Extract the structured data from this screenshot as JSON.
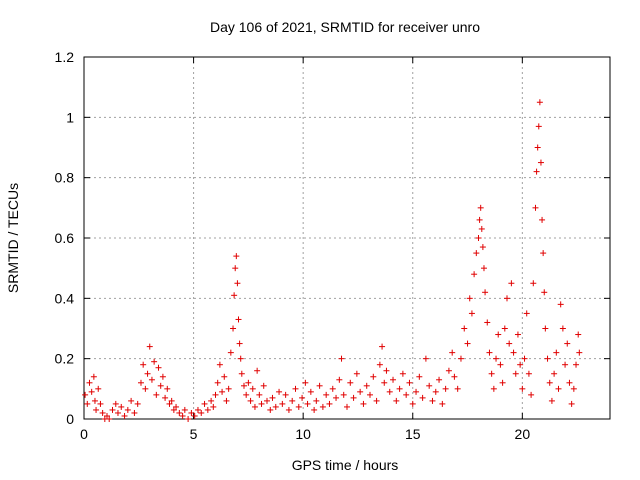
{
  "chart_data": {
    "type": "scatter",
    "title": "Day 106 of 2021, SRMTID for receiver unro",
    "xlabel": "GPS time / hours",
    "ylabel": "SRMTID / TECUs",
    "xlim": [
      0,
      24
    ],
    "ylim": [
      0,
      1.2
    ],
    "xticks": [
      0,
      5,
      10,
      15,
      20
    ],
    "xtick_labels": [
      "0",
      "5",
      "10",
      "15",
      "20"
    ],
    "yticks": [
      0,
      0.2,
      0.4,
      0.6,
      0.8,
      1.0,
      1.2
    ],
    "ytick_labels": [
      "0",
      "0.2",
      "0.4",
      "0.6",
      "0.8",
      "1",
      "1.2"
    ],
    "grid": true,
    "marker": "+",
    "color": "#e00000",
    "series": [
      {
        "name": "SRMTID",
        "points": [
          [
            0.05,
            0.08
          ],
          [
            0.15,
            0.05
          ],
          [
            0.25,
            0.12
          ],
          [
            0.35,
            0.09
          ],
          [
            0.45,
            0.14
          ],
          [
            0.5,
            0.06
          ],
          [
            0.55,
            0.03
          ],
          [
            0.65,
            0.1
          ],
          [
            0.75,
            0.05
          ],
          [
            0.85,
            0.02
          ],
          [
            0.95,
            0.0
          ],
          [
            1.05,
            0.01
          ],
          [
            1.15,
            0.0
          ],
          [
            1.3,
            0.03
          ],
          [
            1.45,
            0.05
          ],
          [
            1.55,
            0.02
          ],
          [
            1.7,
            0.04
          ],
          [
            1.85,
            0.01
          ],
          [
            2.0,
            0.03
          ],
          [
            2.15,
            0.06
          ],
          [
            2.3,
            0.02
          ],
          [
            2.45,
            0.05
          ],
          [
            2.6,
            0.12
          ],
          [
            2.7,
            0.18
          ],
          [
            2.8,
            0.1
          ],
          [
            2.9,
            0.15
          ],
          [
            3.0,
            0.24
          ],
          [
            3.1,
            0.13
          ],
          [
            3.2,
            0.19
          ],
          [
            3.3,
            0.08
          ],
          [
            3.4,
            0.17
          ],
          [
            3.5,
            0.11
          ],
          [
            3.6,
            0.14
          ],
          [
            3.7,
            0.07
          ],
          [
            3.8,
            0.1
          ],
          [
            3.9,
            0.05
          ],
          [
            4.0,
            0.06
          ],
          [
            4.1,
            0.03
          ],
          [
            4.2,
            0.04
          ],
          [
            4.35,
            0.02
          ],
          [
            4.5,
            0.01
          ],
          [
            4.6,
            0.03
          ],
          [
            4.75,
            0.0
          ],
          [
            4.9,
            0.02
          ],
          [
            5.05,
            0.01
          ],
          [
            5.2,
            0.03
          ],
          [
            5.35,
            0.02
          ],
          [
            5.5,
            0.05
          ],
          [
            5.65,
            0.03
          ],
          [
            5.8,
            0.06
          ],
          [
            5.9,
            0.04
          ],
          [
            6.0,
            0.08
          ],
          [
            6.1,
            0.12
          ],
          [
            6.2,
            0.18
          ],
          [
            6.3,
            0.09
          ],
          [
            6.4,
            0.14
          ],
          [
            6.5,
            0.06
          ],
          [
            6.6,
            0.1
          ],
          [
            6.7,
            0.22
          ],
          [
            6.8,
            0.3
          ],
          [
            6.85,
            0.41
          ],
          [
            6.9,
            0.5
          ],
          [
            6.95,
            0.54
          ],
          [
            7.0,
            0.45
          ],
          [
            7.05,
            0.33
          ],
          [
            7.1,
            0.25
          ],
          [
            7.15,
            0.2
          ],
          [
            7.2,
            0.15
          ],
          [
            7.3,
            0.11
          ],
          [
            7.4,
            0.08
          ],
          [
            7.5,
            0.12
          ],
          [
            7.6,
            0.06
          ],
          [
            7.7,
            0.1
          ],
          [
            7.8,
            0.04
          ],
          [
            7.9,
            0.16
          ],
          [
            8.0,
            0.08
          ],
          [
            8.1,
            0.05
          ],
          [
            8.2,
            0.11
          ],
          [
            8.35,
            0.06
          ],
          [
            8.5,
            0.03
          ],
          [
            8.6,
            0.07
          ],
          [
            8.75,
            0.04
          ],
          [
            8.9,
            0.09
          ],
          [
            9.05,
            0.05
          ],
          [
            9.2,
            0.08
          ],
          [
            9.35,
            0.03
          ],
          [
            9.5,
            0.06
          ],
          [
            9.65,
            0.1
          ],
          [
            9.8,
            0.04
          ],
          [
            9.95,
            0.07
          ],
          [
            10.1,
            0.12
          ],
          [
            10.2,
            0.05
          ],
          [
            10.35,
            0.09
          ],
          [
            10.5,
            0.03
          ],
          [
            10.6,
            0.06
          ],
          [
            10.75,
            0.11
          ],
          [
            10.9,
            0.04
          ],
          [
            11.05,
            0.08
          ],
          [
            11.2,
            0.05
          ],
          [
            11.35,
            0.1
          ],
          [
            11.5,
            0.07
          ],
          [
            11.65,
            0.13
          ],
          [
            11.75,
            0.2
          ],
          [
            11.85,
            0.08
          ],
          [
            12.0,
            0.04
          ],
          [
            12.15,
            0.12
          ],
          [
            12.3,
            0.07
          ],
          [
            12.45,
            0.15
          ],
          [
            12.6,
            0.09
          ],
          [
            12.75,
            0.05
          ],
          [
            12.9,
            0.11
          ],
          [
            13.05,
            0.08
          ],
          [
            13.2,
            0.14
          ],
          [
            13.35,
            0.06
          ],
          [
            13.5,
            0.18
          ],
          [
            13.6,
            0.24
          ],
          [
            13.7,
            0.12
          ],
          [
            13.8,
            0.16
          ],
          [
            13.95,
            0.09
          ],
          [
            14.1,
            0.13
          ],
          [
            14.25,
            0.06
          ],
          [
            14.4,
            0.1
          ],
          [
            14.55,
            0.15
          ],
          [
            14.7,
            0.08
          ],
          [
            14.85,
            0.12
          ],
          [
            15.0,
            0.05
          ],
          [
            15.15,
            0.09
          ],
          [
            15.3,
            0.14
          ],
          [
            15.45,
            0.07
          ],
          [
            15.6,
            0.2
          ],
          [
            15.75,
            0.11
          ],
          [
            15.9,
            0.06
          ],
          [
            16.05,
            0.09
          ],
          [
            16.2,
            0.13
          ],
          [
            16.35,
            0.05
          ],
          [
            16.5,
            0.1
          ],
          [
            16.65,
            0.16
          ],
          [
            16.8,
            0.22
          ],
          [
            16.9,
            0.14
          ],
          [
            17.05,
            0.1
          ],
          [
            17.2,
            0.2
          ],
          [
            17.35,
            0.3
          ],
          [
            17.5,
            0.25
          ],
          [
            17.6,
            0.4
          ],
          [
            17.7,
            0.35
          ],
          [
            17.8,
            0.48
          ],
          [
            17.9,
            0.55
          ],
          [
            18.0,
            0.6
          ],
          [
            18.05,
            0.66
          ],
          [
            18.1,
            0.7
          ],
          [
            18.15,
            0.63
          ],
          [
            18.2,
            0.57
          ],
          [
            18.25,
            0.5
          ],
          [
            18.3,
            0.42
          ],
          [
            18.4,
            0.32
          ],
          [
            18.5,
            0.22
          ],
          [
            18.6,
            0.15
          ],
          [
            18.7,
            0.1
          ],
          [
            18.8,
            0.2
          ],
          [
            18.9,
            0.28
          ],
          [
            19.0,
            0.18
          ],
          [
            19.1,
            0.12
          ],
          [
            19.2,
            0.3
          ],
          [
            19.3,
            0.4
          ],
          [
            19.4,
            0.25
          ],
          [
            19.5,
            0.45
          ],
          [
            19.6,
            0.22
          ],
          [
            19.7,
            0.15
          ],
          [
            19.8,
            0.28
          ],
          [
            19.9,
            0.18
          ],
          [
            20.0,
            0.1
          ],
          [
            20.1,
            0.2
          ],
          [
            20.2,
            0.35
          ],
          [
            20.3,
            0.15
          ],
          [
            20.4,
            0.08
          ],
          [
            20.5,
            0.45
          ],
          [
            20.6,
            0.7
          ],
          [
            20.65,
            0.82
          ],
          [
            20.7,
            0.9
          ],
          [
            20.75,
            0.97
          ],
          [
            20.8,
            1.05
          ],
          [
            20.85,
            0.85
          ],
          [
            20.9,
            0.66
          ],
          [
            20.95,
            0.55
          ],
          [
            21.0,
            0.42
          ],
          [
            21.05,
            0.3
          ],
          [
            21.15,
            0.2
          ],
          [
            21.25,
            0.12
          ],
          [
            21.35,
            0.06
          ],
          [
            21.45,
            0.15
          ],
          [
            21.55,
            0.22
          ],
          [
            21.65,
            0.1
          ],
          [
            21.75,
            0.38
          ],
          [
            21.85,
            0.3
          ],
          [
            21.95,
            0.18
          ],
          [
            22.05,
            0.25
          ],
          [
            22.15,
            0.12
          ],
          [
            22.25,
            0.05
          ],
          [
            22.35,
            0.1
          ],
          [
            22.45,
            0.18
          ],
          [
            22.55,
            0.28
          ],
          [
            22.6,
            0.22
          ]
        ]
      }
    ]
  }
}
